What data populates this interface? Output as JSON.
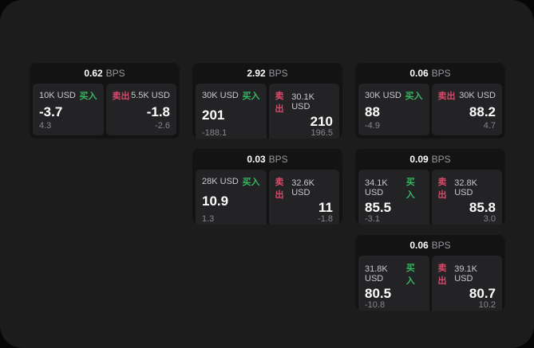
{
  "colors": {
    "background": "#060606",
    "panel": "#1c1c1d",
    "card": "#131314",
    "side_panel": "#232325",
    "buy": "#34b860",
    "sell": "#d84a6a",
    "value_text": "#ffffff",
    "muted_text": "#87878b"
  },
  "labels": {
    "buy": "买入",
    "sell": "卖出",
    "bps": "BPS"
  },
  "cards": [
    {
      "bps": "0.62",
      "buy": {
        "amount": "10K USD",
        "value": "-3.7",
        "sub": "4.3"
      },
      "sell": {
        "amount": "5.5K USD",
        "value": "-1.8",
        "sub": "-2.6"
      }
    },
    {
      "bps": "2.92",
      "buy": {
        "amount": "30K USD",
        "value": "201",
        "sub": "-188.1"
      },
      "sell": {
        "amount": "30.1K USD",
        "value": "210",
        "sub": "196.5"
      }
    },
    {
      "bps": "0.06",
      "buy": {
        "amount": "30K USD",
        "value": "88",
        "sub": "-4.9"
      },
      "sell": {
        "amount": "30K USD",
        "value": "88.2",
        "sub": "4.7"
      }
    },
    {
      "bps": "0.03",
      "buy": {
        "amount": "28K USD",
        "value": "10.9",
        "sub": "1.3"
      },
      "sell": {
        "amount": "32.6K USD",
        "value": "11",
        "sub": "-1.8"
      }
    },
    {
      "bps": "0.09",
      "buy": {
        "amount": "34.1K USD",
        "value": "85.5",
        "sub": "-3.1"
      },
      "sell": {
        "amount": "32.8K USD",
        "value": "85.8",
        "sub": "3.0"
      }
    },
    {
      "bps": "0.06",
      "buy": {
        "amount": "31.8K USD",
        "value": "80.5",
        "sub": "-10.8"
      },
      "sell": {
        "amount": "39.1K USD",
        "value": "80.7",
        "sub": "10.2"
      }
    }
  ]
}
